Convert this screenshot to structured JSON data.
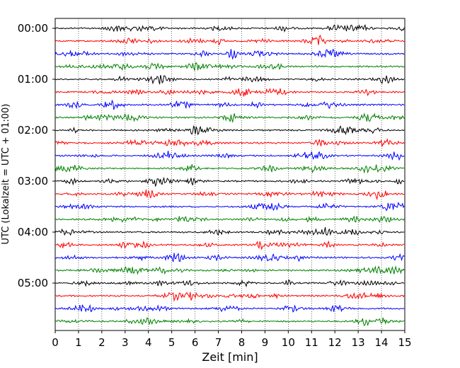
{
  "chart_data": {
    "type": "line",
    "title": "",
    "xlabel": "Zeit  [min]",
    "ylabel": "UTC (Lokalzeit = UTC + 01:00)",
    "xlim": [
      0,
      15
    ],
    "x_ticks": [
      "0",
      "1",
      "2",
      "3",
      "4",
      "5",
      "6",
      "7",
      "8",
      "9",
      "10",
      "11",
      "12",
      "13",
      "14",
      "15"
    ],
    "y_ticks": [
      "00:00",
      "01:00",
      "02:00",
      "03:00",
      "04:00",
      "05:00"
    ],
    "vertical_grid": true,
    "trace_interval_min": 15,
    "trace_count": 24,
    "trace_colors": [
      "#000000",
      "#ff0000",
      "#0000ff",
      "#008000"
    ],
    "trace_start_times": [
      "00:00",
      "00:15",
      "00:30",
      "00:45",
      "01:00",
      "01:15",
      "01:30",
      "01:45",
      "02:00",
      "02:15",
      "02:30",
      "02:45",
      "03:00",
      "03:15",
      "03:30",
      "03:45",
      "04:00",
      "04:15",
      "04:30",
      "04:45",
      "05:00",
      "05:15",
      "05:30",
      "05:45"
    ]
  }
}
